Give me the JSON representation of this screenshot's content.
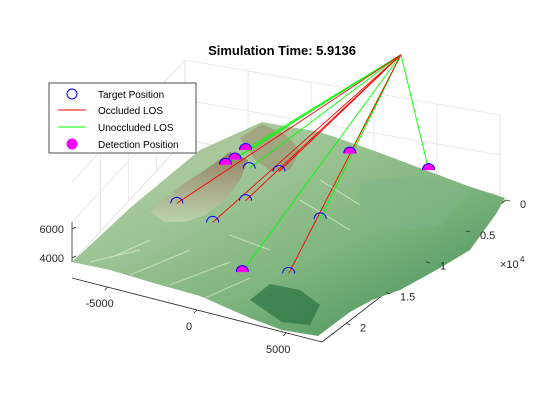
{
  "chart_data": {
    "type": "scatter",
    "title": "Simulation Time: 5.9136",
    "x_axis": {
      "ticks": [
        "-5000",
        "0",
        "5000"
      ],
      "tick_values": [
        -5000,
        0,
        5000
      ],
      "range": [
        -7000,
        7000
      ]
    },
    "y_axis": {
      "ticks": [
        "0",
        "0.5",
        "1",
        "1.5",
        "2"
      ],
      "tick_values": [
        0,
        0.5,
        1,
        1.5,
        2
      ],
      "multiplier": "×10",
      "multiplier_exponent": "4",
      "range": [
        0,
        2.3
      ]
    },
    "z_axis": {
      "ticks": [
        "4000",
        "6000"
      ],
      "tick_values": [
        4000,
        6000
      ]
    },
    "grid": true,
    "legend": {
      "placement": "top-left",
      "entries": [
        {
          "label": "Target Position",
          "marker": "circle-open",
          "color": "#0000ff"
        },
        {
          "label": "Occluded LOS",
          "marker": "line",
          "color": "#ff0000"
        },
        {
          "label": "Unoccluded LOS",
          "marker": "line",
          "color": "#00ff00"
        },
        {
          "label": "Detection Position",
          "marker": "circle-filled",
          "color": "#ff00ff"
        }
      ]
    },
    "colors": {
      "target": "#0000ff",
      "occluded": "#ff0000",
      "unoccluded": "#00ff00",
      "detection": "#ff00ff",
      "terrain_high": "#a08470",
      "terrain_mid": "#9ec79a",
      "terrain_low": "#2f7a45"
    },
    "sensor": {
      "x": 2000,
      "y": -0.2,
      "z": 9800
    },
    "targets": [
      {
        "x": -3300,
        "y": 0.4,
        "z": 4700,
        "los": "unoccluded",
        "detected": true
      },
      {
        "x": -3400,
        "y": 0.55,
        "z": 4600,
        "los": "unoccluded",
        "detected": true
      },
      {
        "x": -3500,
        "y": 0.68,
        "z": 4700,
        "los": "unoccluded",
        "detected": true
      },
      {
        "x": -2600,
        "y": 0.6,
        "z": 4400,
        "los": "unoccluded",
        "detected": false
      },
      {
        "x": -1200,
        "y": 0.6,
        "z": 4600,
        "los": "occluded",
        "detected": false
      },
      {
        "x": 1200,
        "y": 0.3,
        "z": 5300,
        "los": "unoccluded",
        "detected": true
      },
      {
        "x": 4800,
        "y": 0.3,
        "z": 5200,
        "los": "unoccluded",
        "detected": true
      },
      {
        "x": -4200,
        "y": 1.3,
        "z": 4200,
        "los": "occluded",
        "detected": false
      },
      {
        "x": -1500,
        "y": 1.05,
        "z": 4300,
        "los": "occluded",
        "detected": false
      },
      {
        "x": -2100,
        "y": 1.4,
        "z": 4000,
        "los": "occluded",
        "detected": false
      },
      {
        "x": 2000,
        "y": 1.0,
        "z": 4000,
        "los": "unoccluded",
        "detected": false
      },
      {
        "x": 900,
        "y": 1.85,
        "z": 3500,
        "los": "unoccluded",
        "detected": true
      },
      {
        "x": 3000,
        "y": 1.75,
        "z": 3700,
        "los": "occluded",
        "detected": false
      }
    ]
  }
}
